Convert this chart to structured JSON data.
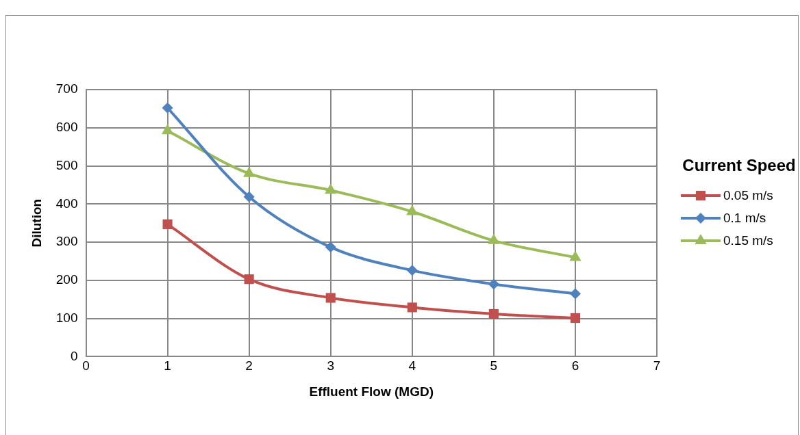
{
  "chart_data": {
    "type": "line",
    "xlabel": "Effluent Flow (MGD)",
    "ylabel": "Dilution",
    "legend_title": "Current Speed",
    "legend": "right",
    "grid": true,
    "x": [
      1,
      2,
      3,
      4,
      5,
      6
    ],
    "xlim": [
      0,
      7
    ],
    "xticks": [
      0,
      1,
      2,
      3,
      4,
      5,
      6,
      7
    ],
    "ylim": [
      0,
      700
    ],
    "yticks": [
      0,
      100,
      200,
      300,
      400,
      500,
      600,
      700
    ],
    "series": [
      {
        "name": "0.05 m/s",
        "color": "#c0504d",
        "marker": "square",
        "values": [
          347,
          203,
          154,
          129,
          112,
          101
        ]
      },
      {
        "name": "0.1 m/s",
        "color": "#4f81bd",
        "marker": "diamond",
        "values": [
          652,
          419,
          287,
          226,
          190,
          165
        ]
      },
      {
        "name": "0.15 m/s",
        "color": "#9bbb59",
        "marker": "triangle",
        "values": [
          592,
          480,
          436,
          380,
          304,
          260
        ]
      }
    ]
  }
}
